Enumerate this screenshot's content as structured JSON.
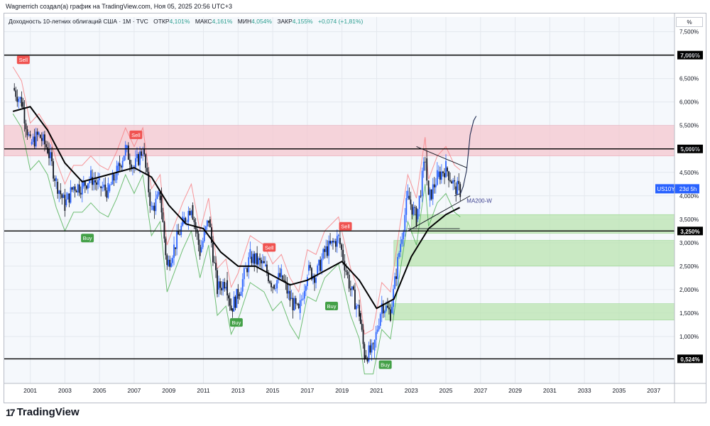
{
  "header": {
    "attribution": "Wagnerrich создал(а) график на TradingView.com, Ноя 05, 2025 20:56 UTC+3"
  },
  "legend": {
    "title": "Доходность 10-летних облигаций США · 1M · TVC",
    "open_label": "ОТКР",
    "open_value": "4,101%",
    "high_label": "МАКС",
    "high_value": "4,161%",
    "low_label": "МИН",
    "low_value": "4,054%",
    "close_label": "ЗАКР",
    "close_value": "4,155%",
    "change": "+0,074 (+1,81%)"
  },
  "scale_unit": "%",
  "brand": {
    "logo": "17",
    "name": "TradingView"
  },
  "colors": {
    "up": "#2962ff",
    "down": "#131722",
    "resistance_zone": "#f4c7cf",
    "support_zone": "#b9e4b0",
    "sell": "#f05350",
    "buy": "#43a047",
    "trail_red": "#f77c80",
    "trail_green": "#4caf50",
    "ma": "#000000"
  },
  "chart_data": {
    "type": "candlestick",
    "symbol": "US10Y",
    "symbol_countdown": "23d 5h",
    "timeframe": "1M",
    "xlim": [
      1999.5,
      2038.2
    ],
    "ylim": [
      0.0,
      7.6
    ],
    "x_ticks": [
      "2001",
      "2003",
      "2005",
      "2007",
      "2009",
      "2011",
      "2013",
      "2015",
      "2017",
      "2019",
      "2021",
      "2023",
      "2025",
      "2027",
      "2029",
      "2031",
      "2033",
      "2035",
      "2037"
    ],
    "y_ticks": [
      "1,000%",
      "1,500%",
      "2,000%",
      "2,500%",
      "3,000%",
      "3,500%",
      "4,000%",
      "4,500%",
      "5,000%",
      "5,500%",
      "6,000%",
      "6,500%",
      "7,000%",
      "7,500%"
    ],
    "price_series": {
      "name": "US10Y monthly close (approx.)",
      "x": [
        2000.0,
        2000.5,
        2001.0,
        2001.5,
        2002.0,
        2002.5,
        2003.0,
        2003.5,
        2004.0,
        2004.5,
        2005.0,
        2005.5,
        2006.0,
        2006.5,
        2007.0,
        2007.5,
        2008.0,
        2008.5,
        2008.9,
        2009.3,
        2009.8,
        2010.3,
        2010.8,
        2011.3,
        2011.8,
        2012.3,
        2012.6,
        2013.0,
        2013.7,
        2014.5,
        2015.0,
        2015.5,
        2016.0,
        2016.5,
        2017.0,
        2017.5,
        2018.0,
        2018.8,
        2019.5,
        2020.0,
        2020.3,
        2020.8,
        2021.3,
        2021.8,
        2022.3,
        2022.8,
        2023.3,
        2023.8,
        2024.0,
        2024.5,
        2025.0,
        2025.5,
        2025.83
      ],
      "values": [
        6.3,
        6.0,
        5.1,
        5.3,
        5.0,
        4.3,
        3.8,
        4.2,
        4.2,
        4.4,
        4.2,
        4.1,
        4.5,
        5.0,
        4.6,
        5.0,
        3.7,
        4.0,
        2.5,
        2.9,
        3.4,
        3.8,
        2.8,
        3.5,
        2.0,
        2.2,
        1.6,
        1.9,
        2.7,
        2.5,
        2.1,
        2.3,
        1.8,
        1.5,
        2.4,
        2.3,
        2.8,
        3.1,
        2.0,
        1.5,
        0.6,
        0.7,
        1.7,
        1.5,
        2.8,
        4.0,
        3.5,
        4.8,
        3.9,
        4.4,
        4.6,
        4.2,
        4.1
      ]
    },
    "moving_average": {
      "name": "MA200-W",
      "x": [
        2000.0,
        2001.0,
        2002.0,
        2003.0,
        2004.0,
        2005.0,
        2006.0,
        2007.0,
        2008.0,
        2009.0,
        2010.0,
        2011.0,
        2012.0,
        2013.0,
        2014.0,
        2015.0,
        2016.0,
        2017.0,
        2018.0,
        2019.0,
        2020.0,
        2021.0,
        2022.0,
        2023.0,
        2024.0,
        2025.0,
        2025.8
      ],
      "values": [
        5.8,
        5.9,
        5.4,
        4.7,
        4.3,
        4.4,
        4.5,
        4.6,
        4.4,
        3.8,
        3.4,
        3.3,
        2.8,
        2.5,
        2.5,
        2.3,
        2.1,
        2.2,
        2.4,
        2.6,
        2.2,
        1.6,
        1.8,
        2.7,
        3.3,
        3.6,
        3.75
      ]
    },
    "horizontal_levels": [
      {
        "value": 7.0,
        "label": "7,000%"
      },
      {
        "value": 5.0,
        "label": "5,000%"
      },
      {
        "value": 3.25,
        "label": "3,250%"
      },
      {
        "value": 0.524,
        "label": "0,524%"
      }
    ],
    "zones": [
      {
        "type": "resistance",
        "y0": 4.85,
        "y1": 5.5,
        "x0": 1999.5,
        "x1": 2038.2
      },
      {
        "type": "support",
        "y0": 3.2,
        "y1": 3.6,
        "x0": 2023.0,
        "x1": 2038.2
      },
      {
        "type": "support",
        "y0": 2.5,
        "y1": 3.05,
        "x0": 2022.0,
        "x1": 2038.2
      },
      {
        "type": "support",
        "y0": 1.35,
        "y1": 1.7,
        "x0": 2021.5,
        "x1": 2038.2
      }
    ],
    "signals": [
      {
        "type": "Sell",
        "x": 2000.6,
        "y": 6.9
      },
      {
        "type": "Sell",
        "x": 2007.1,
        "y": 5.3
      },
      {
        "type": "Buy",
        "x": 2004.3,
        "y": 3.1
      },
      {
        "type": "Sell",
        "x": 2014.8,
        "y": 2.9
      },
      {
        "type": "Buy",
        "x": 2012.9,
        "y": 1.3
      },
      {
        "type": "Sell",
        "x": 2019.2,
        "y": 3.35
      },
      {
        "type": "Buy",
        "x": 2018.4,
        "y": 1.65
      },
      {
        "type": "Buy",
        "x": 2021.5,
        "y": 0.4
      }
    ],
    "trend_lines": [
      {
        "x": [
          2023.3,
          2026.2
        ],
        "y": [
          5.05,
          4.6
        ]
      },
      {
        "x": [
          2022.8,
          2026.4
        ],
        "y": [
          3.25,
          4.0
        ]
      },
      {
        "x": [
          2022.8,
          2025.8
        ],
        "y": [
          3.3,
          3.3
        ]
      }
    ],
    "projection": {
      "x": [
        2025.5,
        2025.85,
        2026.0,
        2026.2,
        2026.4,
        2026.6,
        2026.75
      ],
      "y": [
        4.0,
        4.05,
        4.2,
        4.55,
        5.3,
        5.6,
        5.7
      ]
    },
    "annotations": [
      {
        "text": "MA200-W",
        "x": 2026.2,
        "y": 3.85
      },
      {
        "text": "US10Y",
        "y": 4.15
      }
    ]
  }
}
